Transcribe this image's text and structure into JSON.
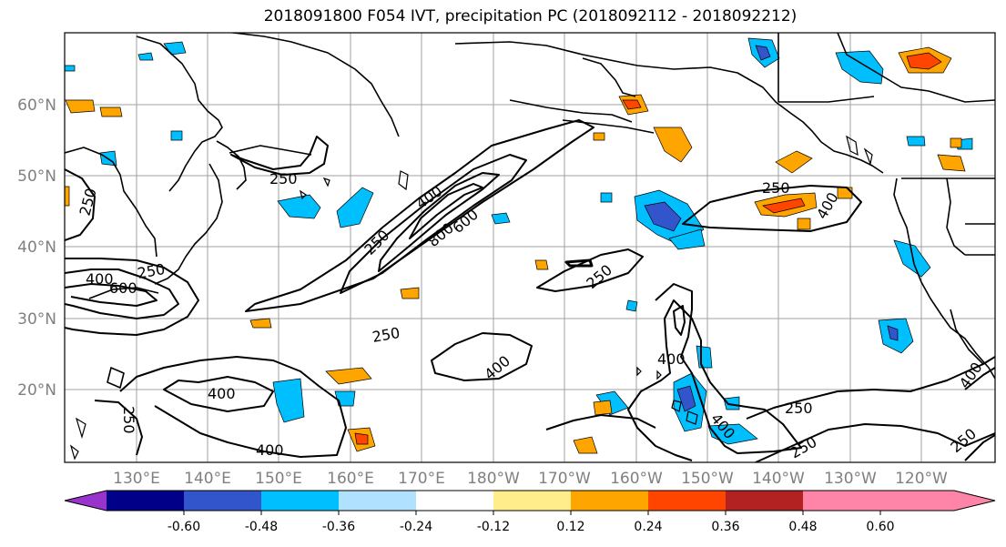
{
  "title": "2018091800 F054 IVT, precipitation PC (2018092112 - 2018092212)",
  "lat_labels": [
    "60°N",
    "50°N",
    "40°N",
    "30°N",
    "20°N"
  ],
  "lon_labels": [
    "130°E",
    "140°E",
    "150°E",
    "160°E",
    "170°E",
    "180°W",
    "170°W",
    "160°W",
    "150°W",
    "140°W",
    "130°W",
    "120°W"
  ],
  "ivt_contour_labels": [
    "250",
    "400",
    "600",
    "800"
  ],
  "colorbar": {
    "colors": [
      "#9933cc",
      "#000088",
      "#3355cc",
      "#00bfff",
      "#b0e2ff",
      "#ffffff",
      "#ffec8b",
      "#ffa500",
      "#ff4500",
      "#b22222",
      "#ff85a8"
    ],
    "tick_labels": [
      "-0.60",
      "-0.48",
      "-0.36",
      "-0.24",
      "-0.12",
      "0.12",
      "0.24",
      "0.36",
      "0.48",
      "0.60"
    ]
  }
}
